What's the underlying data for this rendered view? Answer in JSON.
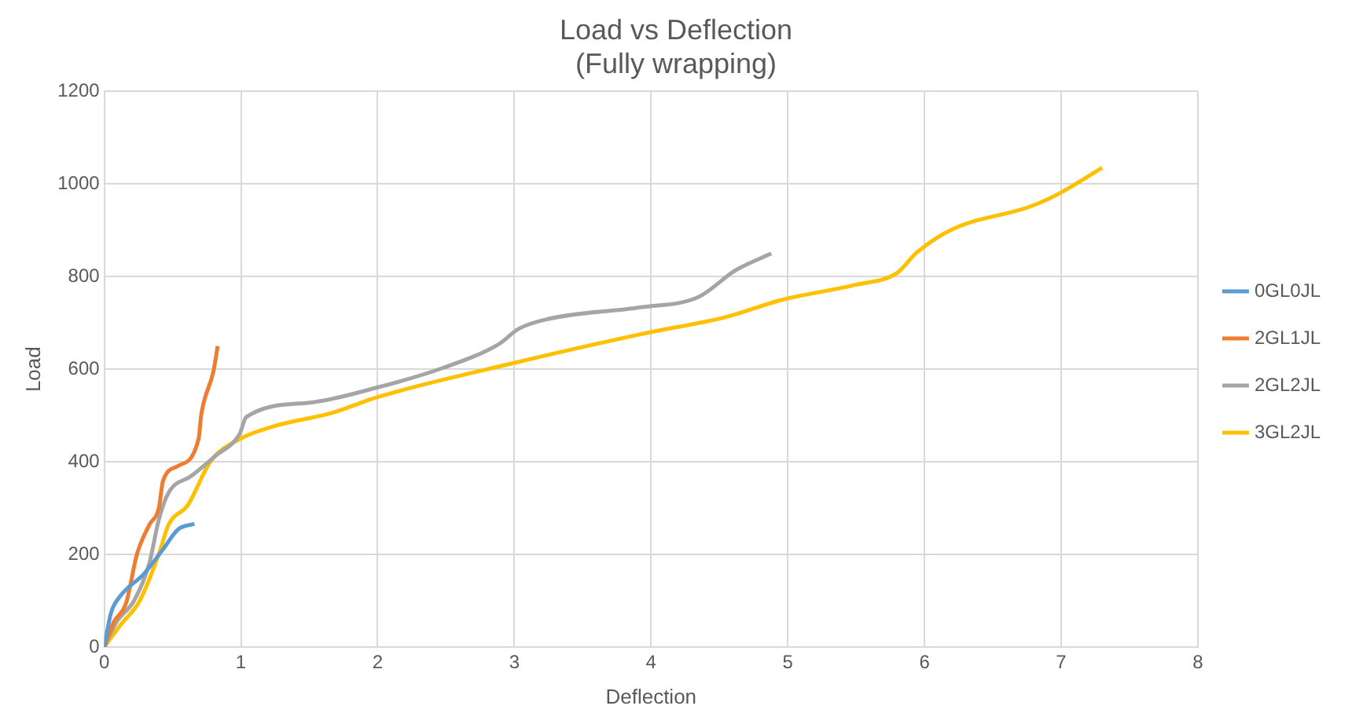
{
  "chart_data": {
    "type": "line",
    "title": "Load vs Deflection",
    "subtitle": "(Fully wrapping)",
    "xlabel": "Deflection",
    "ylabel": "Load",
    "xlim": [
      0,
      8
    ],
    "xticks": [
      0,
      1,
      2,
      3,
      4,
      5,
      6,
      7,
      8
    ],
    "ylim": [
      0,
      1200
    ],
    "yticks": [
      0,
      200,
      400,
      600,
      800,
      1000,
      1200
    ],
    "grid": true,
    "legend": "right",
    "marker": "none",
    "line_style": "solid",
    "series": [
      {
        "name": "0GL0JL",
        "color": "#5b9bd5",
        "x": [
          0,
          0.05,
          0.12,
          0.29,
          0.43,
          0.54,
          0.66
        ],
        "values": [
          0,
          74,
          111,
          158,
          211,
          254,
          266
        ]
      },
      {
        "name": "2GL1JL",
        "color": "#ed7d31",
        "x": [
          0,
          0.07,
          0.16,
          0.24,
          0.33,
          0.4,
          0.43,
          0.54,
          0.69,
          0.71,
          0.8,
          0.83
        ],
        "values": [
          0,
          54,
          95,
          201,
          264,
          301,
          359,
          391,
          449,
          502,
          597,
          650
        ]
      },
      {
        "name": "2GL2JL",
        "color": "#a5a5a5",
        "x": [
          0,
          0.09,
          0.22,
          0.33,
          0.4,
          0.47,
          0.64,
          0.81,
          0.99,
          1.04,
          1.51,
          1.99,
          2.47,
          2.89,
          3.03,
          3.24,
          3.93,
          4.34,
          4.62,
          4.88
        ],
        "values": [
          0,
          54,
          101,
          181,
          276,
          333,
          370,
          412,
          460,
          497,
          528,
          560,
          602,
          655,
          687,
          708,
          734,
          755,
          814,
          850
        ]
      },
      {
        "name": "3GL2JL",
        "color": "#ffc000",
        "x": [
          0,
          0.12,
          0.26,
          0.4,
          0.47,
          0.61,
          0.78,
          0.99,
          1.23,
          1.68,
          1.99,
          2.99,
          3.93,
          4.55,
          4.96,
          5.49,
          5.8,
          5.94,
          6.21,
          6.77,
          6.97,
          7.3
        ],
        "values": [
          0,
          48,
          100,
          201,
          264,
          306,
          402,
          449,
          476,
          507,
          539,
          613,
          676,
          713,
          750,
          782,
          808,
          851,
          903,
          951,
          977,
          1035
        ]
      }
    ]
  }
}
